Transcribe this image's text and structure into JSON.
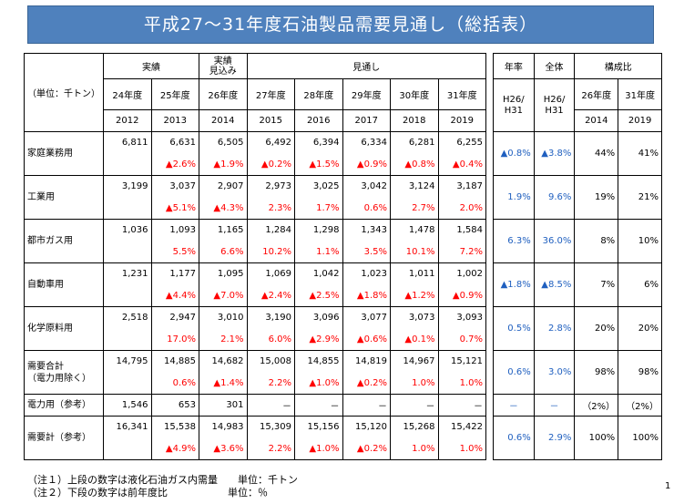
{
  "title": "平成27～31年度石油製品需要見通し（総括表）",
  "header": {
    "unit_label": "（単位：千トン）",
    "group_actual": "実績",
    "group_estimate": "実績\n見込み",
    "group_forecast": "見通し",
    "fiscal_years": [
      "24年度",
      "25年度",
      "26年度",
      "27年度",
      "28年度",
      "29年度",
      "30年度",
      "31年度"
    ],
    "calendar_years": [
      "2012",
      "2013",
      "2014",
      "2015",
      "2016",
      "2017",
      "2018",
      "2019"
    ],
    "annual_rate": "年率",
    "overall": "全体",
    "composition": "構成比",
    "rate_period": "H26/\nH31",
    "overall_period": "H26/\nH31",
    "comp_years_fy": [
      "26年度",
      "31年度"
    ],
    "comp_years_cy": [
      "2014",
      "2019"
    ]
  },
  "rows": [
    {
      "name": "家庭業務用",
      "values": [
        "6,811",
        "6,631",
        "6,505",
        "6,492",
        "6,394",
        "6,334",
        "6,281",
        "6,255"
      ],
      "changes": [
        "",
        "▲2.6%",
        "▲1.9%",
        "▲0.2%",
        "▲1.5%",
        "▲0.9%",
        "▲0.8%",
        "▲0.4%"
      ],
      "annual": "▲0.8%",
      "overall": "▲3.8%",
      "comp2014": "44%",
      "comp2019": "41%"
    },
    {
      "name": "工業用",
      "values": [
        "3,199",
        "3,037",
        "2,907",
        "2,973",
        "3,025",
        "3,042",
        "3,124",
        "3,187"
      ],
      "changes": [
        "",
        "▲5.1%",
        "▲4.3%",
        "2.3%",
        "1.7%",
        "0.6%",
        "2.7%",
        "2.0%"
      ],
      "annual": "1.9%",
      "overall": "9.6%",
      "comp2014": "19%",
      "comp2019": "21%"
    },
    {
      "name": "都市ガス用",
      "values": [
        "1,036",
        "1,093",
        "1,165",
        "1,284",
        "1,298",
        "1,343",
        "1,478",
        "1,584"
      ],
      "changes": [
        "",
        "5.5%",
        "6.6%",
        "10.2%",
        "1.1%",
        "3.5%",
        "10.1%",
        "7.2%"
      ],
      "annual": "6.3%",
      "overall": "36.0%",
      "comp2014": "8%",
      "comp2019": "10%"
    },
    {
      "name": "自動車用",
      "values": [
        "1,231",
        "1,177",
        "1,095",
        "1,069",
        "1,042",
        "1,023",
        "1,011",
        "1,002"
      ],
      "changes": [
        "",
        "▲4.4%",
        "▲7.0%",
        "▲2.4%",
        "▲2.5%",
        "▲1.8%",
        "▲1.2%",
        "▲0.9%"
      ],
      "annual": "▲1.8%",
      "overall": "▲8.5%",
      "comp2014": "7%",
      "comp2019": "6%"
    },
    {
      "name": "化学原料用",
      "values": [
        "2,518",
        "2,947",
        "3,010",
        "3,190",
        "3,096",
        "3,077",
        "3,073",
        "3,093"
      ],
      "changes": [
        "",
        "17.0%",
        "2.1%",
        "6.0%",
        "▲2.9%",
        "▲0.6%",
        "▲0.1%",
        "0.7%"
      ],
      "annual": "0.5%",
      "overall": "2.8%",
      "comp2014": "20%",
      "comp2019": "20%"
    },
    {
      "name": "需要合計\n（電力用除く）",
      "values": [
        "14,795",
        "14,885",
        "14,682",
        "15,008",
        "14,855",
        "14,819",
        "14,967",
        "15,121"
      ],
      "changes": [
        "",
        "0.6%",
        "▲1.4%",
        "2.2%",
        "▲1.0%",
        "▲0.2%",
        "1.0%",
        "1.0%"
      ],
      "annual": "0.6%",
      "overall": "3.0%",
      "comp2014": "98%",
      "comp2019": "98%"
    }
  ],
  "power_row": {
    "name": "電力用（参考）",
    "values": [
      "1,546",
      "653",
      "301",
      "－",
      "－",
      "－",
      "－",
      "－"
    ],
    "annual": "－",
    "overall": "－",
    "comp2014": "（2%）",
    "comp2019": "（2%）"
  },
  "ref_row": {
    "name": "需要計（参考）",
    "values": [
      "16,341",
      "15,538",
      "14,983",
      "15,309",
      "15,156",
      "15,120",
      "15,268",
      "15,422"
    ],
    "changes": [
      "",
      "▲4.9%",
      "▲3.6%",
      "2.2%",
      "▲1.0%",
      "▲0.2%",
      "1.0%",
      "1.0%"
    ],
    "annual": "0.6%",
    "overall": "2.9%",
    "comp2014": "100%",
    "comp2019": "100%"
  },
  "notes": {
    "note1": "（注１）上段の数字は液化石油ガス内需量",
    "note1_unit": "単位：千トン",
    "note2": "（注２）下段の数字は前年度比",
    "note2_unit": "単位：％"
  },
  "page_number": "1"
}
